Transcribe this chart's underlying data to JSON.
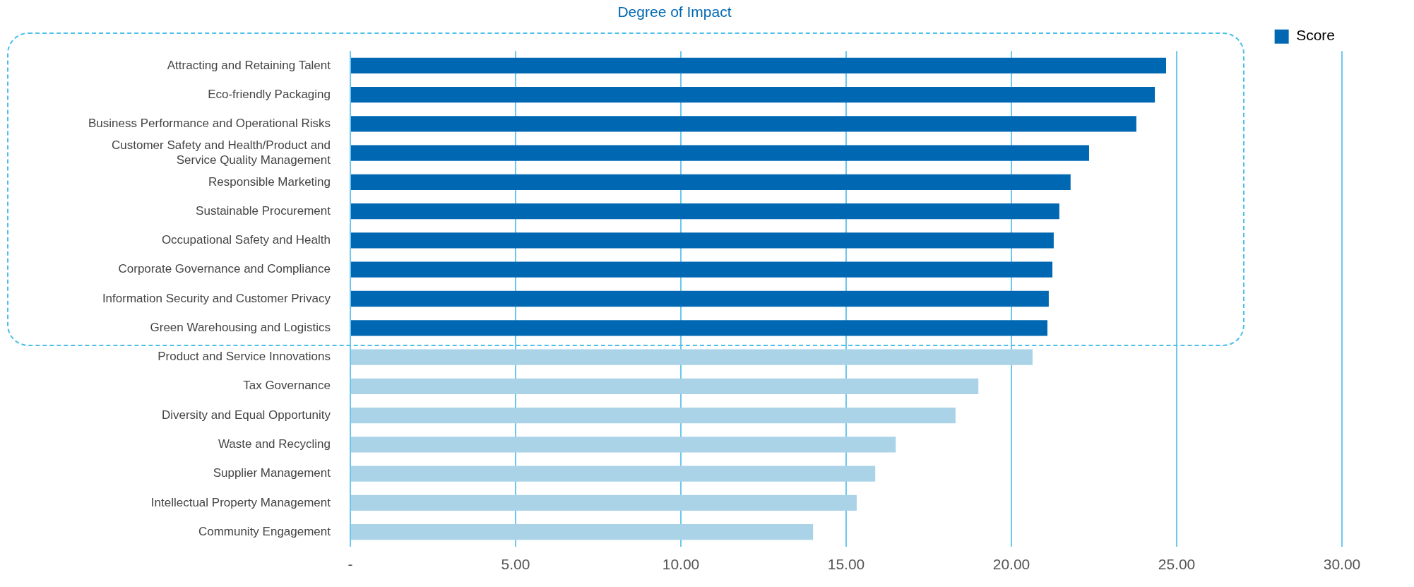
{
  "chart_data": {
    "type": "bar",
    "orientation": "horizontal",
    "title": "Degree of Impact",
    "categories": [
      "Attracting and Retaining Talent",
      "Eco-friendly Packaging",
      "Business Performance and Operational Risks",
      "Customer Safety and Health/Product and Service Quality Management",
      "Responsible Marketing",
      "Sustainable Procurement",
      "Occupational Safety and Health",
      "Corporate Governance and Compliance",
      "Information Security and Customer Privacy",
      "Green Warehousing and Logistics",
      "Product and Service Innovations",
      "Tax Governance",
      "Diversity and Equal Opportunity",
      "Waste and Recycling",
      "Supplier Management",
      "Intellectual Property Management",
      "Community Engagement"
    ],
    "series": [
      {
        "name": "Score",
        "color": "#0068b3",
        "values": [
          24.68,
          24.34,
          23.78,
          22.35,
          21.79,
          21.45,
          21.28,
          21.24,
          21.13,
          21.09,
          20.64,
          19.0,
          18.31,
          16.5,
          15.88,
          15.32,
          14.0
        ],
        "colors": [
          "#0068b3",
          "#0068b3",
          "#0068b3",
          "#0068b3",
          "#0068b3",
          "#0068b3",
          "#0068b3",
          "#0068b3",
          "#0068b3",
          "#0068b3",
          "#aad3e8",
          "#aad3e8",
          "#aad3e8",
          "#aad3e8",
          "#aad3e8",
          "#aad3e8",
          "#aad3e8"
        ]
      }
    ],
    "xlim": [
      0,
      30
    ],
    "xticks": [
      {
        "value": 0,
        "label": "-"
      },
      {
        "value": 5,
        "label": "5.00"
      },
      {
        "value": 10,
        "label": "10.00"
      },
      {
        "value": 15,
        "label": "15.00"
      },
      {
        "value": 20,
        "label": "20.00"
      },
      {
        "value": 25,
        "label": "25.00"
      },
      {
        "value": 30,
        "label": "30.00"
      }
    ],
    "grid": "x",
    "legend": "top right"
  }
}
